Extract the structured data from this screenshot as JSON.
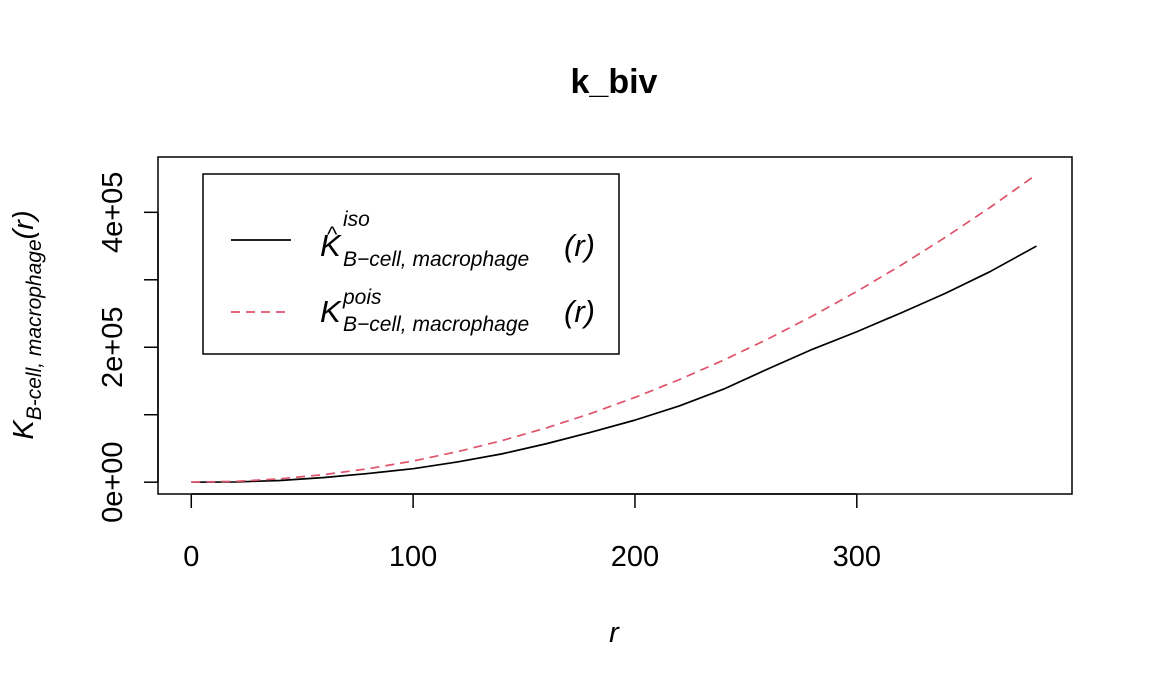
{
  "chart_data": {
    "type": "line",
    "title": "k_biv",
    "xlabel": "r",
    "ylabel": {
      "main": "K",
      "sub": "B-cell, macrophage",
      "arg": "(r)"
    },
    "xlim": [
      -15,
      397
    ],
    "ylim": [
      -17500,
      482000
    ],
    "x_ticks": [
      0,
      100,
      200,
      300
    ],
    "x_tick_labels": [
      "0",
      "100",
      "200",
      "300"
    ],
    "y_ticks": [
      0,
      100000,
      200000,
      300000,
      400000
    ],
    "y_tick_labels": [
      "0e+00",
      "",
      "2e+05",
      "",
      "4e+05"
    ],
    "legend": {
      "position": "top-left",
      "entries": [
        {
          "main": "K",
          "hat": "^",
          "sup": "iso",
          "sub": "B−cell, macrophage",
          "arg": "(r)"
        },
        {
          "main": "K",
          "hat": "",
          "sup": "pois",
          "sub": "B−cell, macrophage",
          "arg": "(r)"
        }
      ]
    },
    "series": [
      {
        "key": "iso",
        "color": "#000000",
        "dash": "solid",
        "x": [
          0,
          20,
          40,
          60,
          80,
          100,
          120,
          140,
          160,
          180,
          200,
          220,
          240,
          260,
          280,
          300,
          320,
          340,
          360,
          381
        ],
        "y": [
          0,
          400,
          2500,
          7000,
          13000,
          20000,
          30000,
          42000,
          57000,
          74000,
          92000,
          113000,
          138000,
          168000,
          197000,
          223000,
          251000,
          280000,
          312000,
          350000
        ]
      },
      {
        "key": "pois",
        "color": "#df536b",
        "dash": "dashed",
        "x": [
          0,
          20,
          40,
          60,
          80,
          100,
          120,
          140,
          160,
          180,
          200,
          220,
          240,
          260,
          280,
          300,
          320,
          340,
          360,
          381
        ],
        "y": [
          0,
          1257,
          5027,
          11310,
          20106,
          31416,
          45239,
          61575,
          80425,
          101788,
          125664,
          152053,
          180956,
          212372,
          246301,
          282743,
          321699,
          363168,
          407150,
          456036
        ]
      }
    ]
  }
}
